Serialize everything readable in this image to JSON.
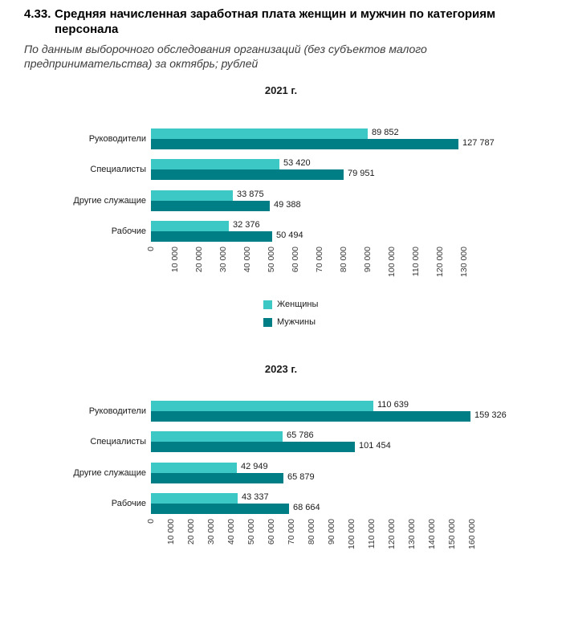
{
  "page": {
    "title_number": "4.33.",
    "title_lines": [
      "Средняя начисленная заработная плата женщин и мужчин по категориям",
      "персонала"
    ],
    "subtitle_lines": [
      "По данным выборочного обследования организаций (без субъектов малого",
      "предпринимательства) за октябрь; рублей"
    ]
  },
  "colors": {
    "women": "#3cc9c5",
    "men": "#007e85"
  },
  "legend": {
    "items": [
      {
        "label": "Женщины",
        "color": "#3cc9c5"
      },
      {
        "label": "Мужчины",
        "color": "#007e85"
      }
    ]
  },
  "chart_data": [
    {
      "type": "bar",
      "orientation": "horizontal",
      "title": "2021 г.",
      "categories": [
        "Руководители",
        "Специалисты",
        "Другие служащие",
        "Рабочие"
      ],
      "series": [
        {
          "name": "Женщины",
          "color": "#3cc9c5",
          "values": [
            89852,
            53420,
            33875,
            32376
          ],
          "labels": [
            "89 852",
            "53 420",
            "33 875",
            "32 376"
          ]
        },
        {
          "name": "Мужчины",
          "color": "#007e85",
          "values": [
            127787,
            79951,
            49388,
            50494
          ],
          "labels": [
            "127 787",
            "79 951",
            "49 388",
            "50 494"
          ]
        }
      ],
      "xlim": [
        0,
        130000
      ],
      "tick_step": 10000,
      "tick_labels": [
        "0",
        "10 000",
        "20 000",
        "30 000",
        "40 000",
        "50 000",
        "60 000",
        "70 000",
        "80 000",
        "90 000",
        "100 000",
        "110 000",
        "120 000",
        "130 000"
      ],
      "legend_position": "bottom-center",
      "grid": false
    },
    {
      "type": "bar",
      "orientation": "horizontal",
      "title": "2023 г.",
      "categories": [
        "Руководители",
        "Специалисты",
        "Другие служащие",
        "Рабочие"
      ],
      "series": [
        {
          "name": "Женщины",
          "color": "#3cc9c5",
          "values": [
            110639,
            65786,
            42949,
            43337
          ],
          "labels": [
            "110 639",
            "65 786",
            "42 949",
            "43 337"
          ]
        },
        {
          "name": "Мужчины",
          "color": "#007e85",
          "values": [
            159326,
            101454,
            65879,
            68664
          ],
          "labels": [
            "159 326",
            "101 454",
            "65 879",
            "68 664"
          ]
        }
      ],
      "xlim": [
        0,
        160000
      ],
      "tick_step": 10000,
      "tick_labels": [
        "0",
        "10 000",
        "20 000",
        "30 000",
        "40 000",
        "50 000",
        "60 000",
        "70 000",
        "80 000",
        "90 000",
        "100 000",
        "110 000",
        "120 000",
        "130 000",
        "140 000",
        "150 000",
        "160 000"
      ],
      "legend_position": "none",
      "grid": false
    }
  ]
}
